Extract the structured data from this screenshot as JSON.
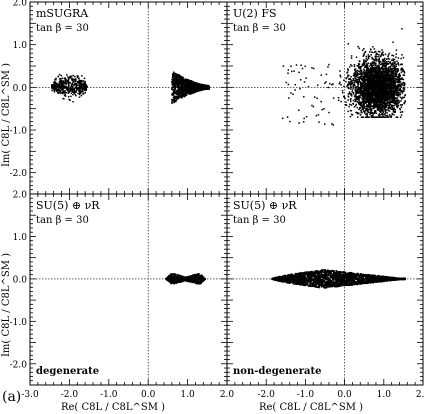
{
  "figure_label": "(a)",
  "chart_data": [
    {
      "type": "scatter",
      "panel": "top-left",
      "model": "mSUGRA",
      "param": "tan β = 30",
      "xlabel": "Re( C8L / C8L^SM )",
      "ylabel": "Im( C8L / C8L^SM )",
      "xlim": [
        -3.0,
        2.0
      ],
      "ylim": [
        -2.5,
        2.0
      ],
      "xticks": [
        -3.0,
        -2.0,
        -1.0,
        0.0,
        1.0,
        2.0
      ],
      "yticks": [
        -2.0,
        -1.0,
        0.0,
        1.0,
        2.0
      ],
      "clusters": [
        {
          "shape": "blob",
          "x_range": [
            -2.45,
            -1.55
          ],
          "y_spread": 0.28
        },
        {
          "shape": "funnel",
          "x_range": [
            0.6,
            1.55
          ],
          "y_spread_left": 0.35,
          "y_spread_right": 0.04
        }
      ],
      "annotation": ""
    },
    {
      "type": "scatter",
      "panel": "top-right",
      "model": "U(2) FS",
      "param": "tan β = 30",
      "xlabel": "Re( C8L / C8L^SM )",
      "ylabel": "Im( C8L / C8L^SM )",
      "xlim": [
        -3.0,
        2.0
      ],
      "ylim": [
        -2.5,
        2.0
      ],
      "clusters": [
        {
          "shape": "cloud",
          "center": [
            0.85,
            0.0
          ],
          "x_range": [
            -0.2,
            1.55
          ],
          "y_range": [
            -0.7,
            1.4
          ]
        },
        {
          "shape": "sparse-tail",
          "x_range": [
            -1.6,
            -0.2
          ],
          "y_range": [
            -1.5,
            0.9
          ]
        }
      ],
      "annotation": ""
    },
    {
      "type": "scatter",
      "panel": "bottom-left",
      "model": "SU(5) ⊕ νR",
      "param": "tan β = 30",
      "xlabel": "Re( C8L / C8L^SM )",
      "ylabel": "Im( C8L / C8L^SM )",
      "xlim": [
        -3.0,
        2.0
      ],
      "ylim": [
        -2.5,
        2.0
      ],
      "clusters": [
        {
          "shape": "dumbbell",
          "x_range": [
            0.45,
            1.45
          ],
          "y_spread": 0.12
        }
      ],
      "annotation": "degenerate"
    },
    {
      "type": "scatter",
      "panel": "bottom-right",
      "model": "SU(5) ⊕ νR",
      "param": "tan β = 30",
      "xlabel": "Re( C8L / C8L^SM )",
      "ylabel": "Im( C8L / C8L^SM )",
      "xlim": [
        -3.0,
        2.0
      ],
      "ylim": [
        -2.5,
        2.0
      ],
      "clusters": [
        {
          "shape": "lens",
          "x_range": [
            -1.85,
            1.55
          ],
          "y_spread": 0.22
        }
      ],
      "annotation": "non-degenerate"
    }
  ]
}
